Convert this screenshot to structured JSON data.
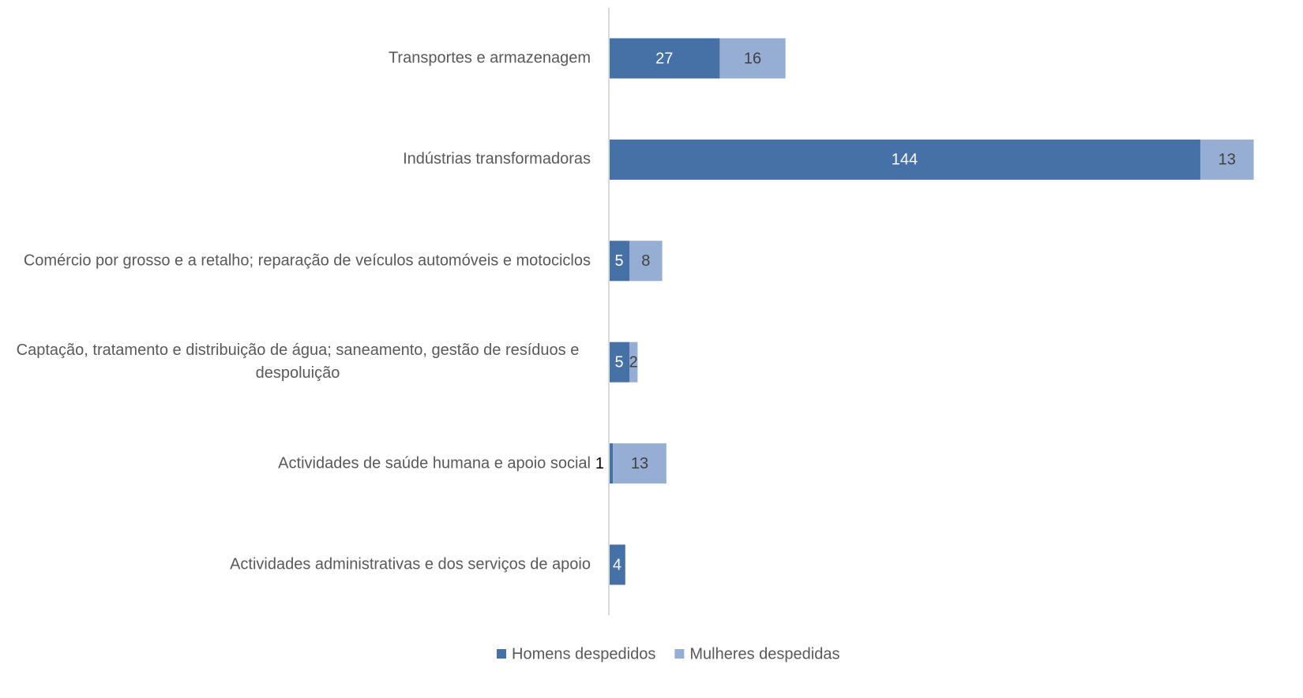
{
  "chart_data": {
    "type": "stacked_bar_horizontal",
    "categories": [
      "Transportes e armazenagem",
      "Indústrias transformadoras",
      "Comércio por grosso e a retalho; reparação de veículos automóveis e motociclos",
      "Captação, tratamento e distribuição de água; saneamento, gestão de resíduos e despoluição",
      "Actividades de saúde humana e apoio social",
      "Actividades administrativas e dos serviços de apoio"
    ],
    "series": [
      {
        "name": "Homens despedidos",
        "color": "#4571a7",
        "values": [
          27,
          144,
          5,
          5,
          1,
          4
        ]
      },
      {
        "name": "Mulheres despedidas",
        "color": "#97aed4",
        "values": [
          16,
          13,
          8,
          2,
          13,
          null
        ]
      }
    ],
    "xlim": [
      0,
      169
    ],
    "legend": "bottom"
  }
}
